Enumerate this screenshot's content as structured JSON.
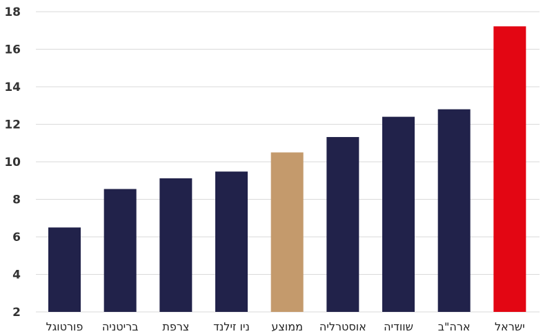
{
  "chart_data": {
    "type": "bar",
    "title": "",
    "xlabel": "",
    "ylabel": "",
    "categories": [
      "פורטוגל",
      "בריטניה",
      "צרפת",
      "ניו זילנד",
      "ממוצע",
      "אוסטרליה",
      "שוודיה",
      "ארה\"ב",
      "ישראל"
    ],
    "values": [
      6.5,
      8.55,
      9.12,
      9.48,
      10.5,
      11.32,
      12.4,
      12.8,
      17.22
    ],
    "colors": [
      "#21224a",
      "#21224a",
      "#21224a",
      "#21224a",
      "#c49a6c",
      "#21224a",
      "#21224a",
      "#21224a",
      "#e30613"
    ],
    "ylim": [
      2,
      18
    ],
    "yticks": [
      2,
      4,
      6,
      8,
      10,
      12,
      14,
      16,
      18
    ],
    "grid": true,
    "legend": "none"
  }
}
